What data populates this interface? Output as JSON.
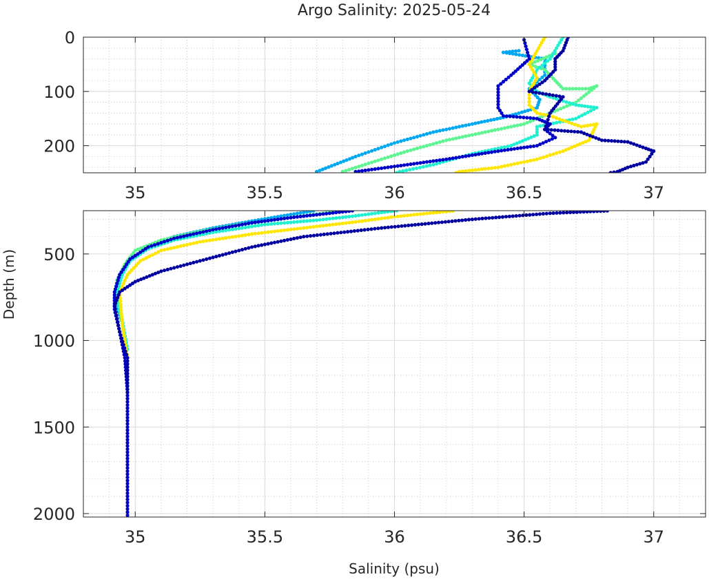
{
  "chart_data": {
    "type": "scatter",
    "title": "Argo Salinity: 2025-05-24",
    "xlabel": "Salinity (psu)",
    "ylabel": "Depth (m)",
    "xlim": [
      34.8,
      37.2
    ],
    "xticks": [
      "35",
      "35.5",
      "36",
      "36.5",
      "37"
    ],
    "xtick_values": [
      35,
      35.5,
      36,
      36.5,
      37
    ],
    "grid": true,
    "minor_grid": true,
    "panels": [
      {
        "name": "upper",
        "ylim": [
          0,
          250
        ],
        "yaxis_reversed": true,
        "yticks": [
          "0",
          "100",
          "200"
        ],
        "ytick_values": [
          0,
          100,
          200
        ]
      },
      {
        "name": "lower",
        "ylim": [
          250,
          2020
        ],
        "yaxis_reversed": true,
        "yticks": [
          "500",
          "1000",
          "1500",
          "2000"
        ],
        "ytick_values": [
          500,
          1000,
          1500,
          2000
        ]
      }
    ],
    "series": [
      {
        "color": "#00a8f0",
        "points": [
          [
            36.48,
            25
          ],
          [
            36.42,
            28
          ],
          [
            36.58,
            40
          ],
          [
            36.58,
            70
          ],
          [
            36.52,
            95
          ],
          [
            36.56,
            115
          ],
          [
            36.55,
            130
          ],
          [
            36.48,
            140
          ],
          [
            36.42,
            148
          ],
          [
            36.3,
            160
          ],
          [
            36.15,
            175
          ],
          [
            36.0,
            195
          ],
          [
            35.85,
            220
          ],
          [
            35.7,
            248
          ],
          [
            35.6,
            272
          ],
          [
            35.45,
            310
          ],
          [
            35.3,
            350
          ],
          [
            35.15,
            400
          ],
          [
            35.05,
            460
          ],
          [
            34.97,
            540
          ],
          [
            34.93,
            650
          ],
          [
            34.92,
            760
          ],
          [
            34.95,
            900
          ],
          [
            34.97,
            1100
          ],
          [
            34.97,
            1300
          ]
        ]
      },
      {
        "color": "#5cf590",
        "points": [
          [
            36.62,
            30
          ],
          [
            36.52,
            50
          ],
          [
            36.58,
            60
          ],
          [
            36.62,
            80
          ],
          [
            36.65,
            95
          ],
          [
            36.75,
            95
          ],
          [
            36.78,
            90
          ],
          [
            36.7,
            120
          ],
          [
            36.5,
            160
          ],
          [
            36.35,
            175
          ],
          [
            36.2,
            190
          ],
          [
            36.05,
            210
          ],
          [
            35.95,
            225
          ],
          [
            35.8,
            248
          ],
          [
            35.7,
            270
          ],
          [
            35.55,
            300
          ],
          [
            35.4,
            330
          ],
          [
            35.25,
            370
          ],
          [
            35.1,
            420
          ],
          [
            35.0,
            480
          ],
          [
            34.96,
            560
          ],
          [
            34.93,
            650
          ],
          [
            34.93,
            750
          ],
          [
            34.95,
            900
          ],
          [
            34.97,
            1100
          ]
        ]
      },
      {
        "color": "#20f0d0",
        "points": [
          [
            36.65,
            0
          ],
          [
            36.6,
            40
          ],
          [
            36.55,
            60
          ],
          [
            36.52,
            85
          ],
          [
            36.55,
            100
          ],
          [
            36.6,
            110
          ],
          [
            36.7,
            125
          ],
          [
            36.78,
            130
          ],
          [
            36.7,
            150
          ],
          [
            36.55,
            165
          ],
          [
            36.55,
            180
          ],
          [
            36.45,
            200
          ],
          [
            36.3,
            215
          ],
          [
            36.15,
            235
          ],
          [
            36.02,
            248
          ],
          [
            35.95,
            260
          ],
          [
            35.85,
            280
          ],
          [
            35.7,
            305
          ],
          [
            35.5,
            330
          ],
          [
            35.3,
            375
          ],
          [
            35.15,
            420
          ],
          [
            35.05,
            470
          ],
          [
            34.98,
            540
          ],
          [
            34.95,
            620
          ],
          [
            34.93,
            720
          ],
          [
            34.95,
            880
          ],
          [
            34.97,
            1050
          ]
        ]
      },
      {
        "color": "#ffe600",
        "points": [
          [
            36.58,
            0
          ],
          [
            36.52,
            50
          ],
          [
            36.55,
            75
          ],
          [
            36.52,
            100
          ],
          [
            36.52,
            125
          ],
          [
            36.55,
            140
          ],
          [
            36.6,
            145
          ],
          [
            36.72,
            165
          ],
          [
            36.78,
            160
          ],
          [
            36.75,
            190
          ],
          [
            36.65,
            210
          ],
          [
            36.55,
            225
          ],
          [
            36.4,
            240
          ],
          [
            36.25,
            248
          ],
          [
            36.15,
            262
          ],
          [
            36.0,
            285
          ],
          [
            35.85,
            315
          ],
          [
            35.65,
            350
          ],
          [
            35.45,
            385
          ],
          [
            35.25,
            430
          ],
          [
            35.1,
            480
          ],
          [
            35.02,
            540
          ],
          [
            34.97,
            620
          ],
          [
            34.94,
            720
          ],
          [
            34.95,
            900
          ],
          [
            34.97,
            1100
          ]
        ]
      },
      {
        "color": "#0000c8",
        "points": [
          [
            36.5,
            5
          ],
          [
            36.52,
            40
          ],
          [
            36.45,
            70
          ],
          [
            36.4,
            90
          ],
          [
            36.4,
            130
          ],
          [
            36.42,
            145
          ],
          [
            36.55,
            150
          ],
          [
            36.6,
            160
          ],
          [
            36.58,
            170
          ],
          [
            36.62,
            185
          ],
          [
            36.55,
            200
          ],
          [
            36.4,
            210
          ],
          [
            36.2,
            225
          ],
          [
            36.05,
            235
          ],
          [
            35.85,
            248
          ],
          [
            35.75,
            265
          ],
          [
            35.6,
            290
          ],
          [
            35.45,
            320
          ],
          [
            35.3,
            360
          ],
          [
            35.15,
            410
          ],
          [
            35.05,
            460
          ],
          [
            34.98,
            530
          ],
          [
            34.94,
            620
          ],
          [
            34.92,
            720
          ],
          [
            34.92,
            820
          ],
          [
            34.94,
            950
          ],
          [
            34.96,
            1100
          ],
          [
            34.97,
            1300
          ],
          [
            34.97,
            1500
          ],
          [
            34.97,
            1700
          ],
          [
            34.97,
            1900
          ],
          [
            34.97,
            2010
          ]
        ]
      },
      {
        "color": "#0000a0",
        "points": [
          [
            36.67,
            0
          ],
          [
            36.65,
            25
          ],
          [
            36.62,
            40
          ],
          [
            36.62,
            60
          ],
          [
            36.58,
            80
          ],
          [
            36.52,
            100
          ],
          [
            36.65,
            110
          ],
          [
            36.6,
            140
          ],
          [
            36.58,
            170
          ],
          [
            36.72,
            175
          ],
          [
            36.8,
            190
          ],
          [
            36.9,
            193
          ],
          [
            36.97,
            205
          ],
          [
            37.0,
            210
          ],
          [
            36.97,
            230
          ],
          [
            36.9,
            240
          ],
          [
            36.86,
            248
          ],
          [
            36.6,
            265
          ],
          [
            36.3,
            300
          ],
          [
            35.95,
            350
          ],
          [
            35.65,
            400
          ],
          [
            35.45,
            460
          ],
          [
            35.25,
            540
          ],
          [
            35.1,
            600
          ],
          [
            35.0,
            660
          ],
          [
            34.94,
            720
          ],
          [
            34.92,
            800
          ],
          [
            34.94,
            950
          ],
          [
            34.97,
            1100
          ],
          [
            34.97,
            1300
          ]
        ]
      }
    ]
  }
}
